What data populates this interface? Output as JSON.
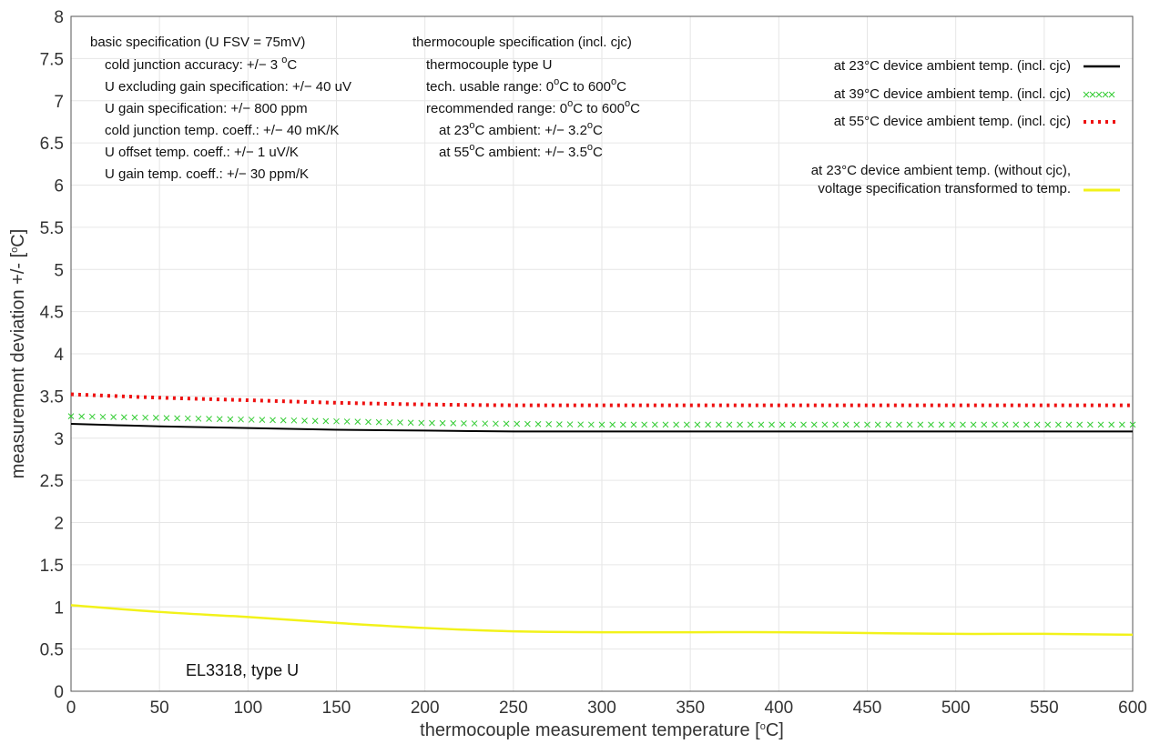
{
  "chart_data": {
    "type": "line",
    "xlabel": "thermocouple measurement temperature [°C]",
    "ylabel": "measurement deviation +/- [°C]",
    "xlim": [
      0,
      600
    ],
    "ylim": [
      0,
      8
    ],
    "x_ticks": [
      "0",
      "50",
      "100",
      "150",
      "200",
      "250",
      "300",
      "350",
      "400",
      "450",
      "500",
      "550",
      "600"
    ],
    "y_ticks": [
      "0",
      "0.5",
      "1",
      "1.5",
      "2",
      "2.5",
      "3",
      "3.5",
      "4",
      "4.5",
      "5",
      "5.5",
      "6",
      "6.5",
      "7",
      "7.5",
      "8"
    ],
    "grid": true,
    "legend_position": "top-right",
    "x": [
      0,
      50,
      100,
      150,
      200,
      250,
      300,
      350,
      400,
      450,
      500,
      550,
      600
    ],
    "series": [
      {
        "name": "at 23°C device ambient temp. (incl. cjc)",
        "color": "#000000",
        "style": "solid",
        "values": [
          3.17,
          3.14,
          3.12,
          3.1,
          3.09,
          3.08,
          3.08,
          3.08,
          3.08,
          3.08,
          3.08,
          3.08,
          3.08
        ]
      },
      {
        "name": "at 39°C device ambient temp. (incl. cjc)",
        "color": "#33cc33",
        "style": "cross",
        "values": [
          3.26,
          3.24,
          3.22,
          3.2,
          3.18,
          3.17,
          3.16,
          3.16,
          3.16,
          3.16,
          3.16,
          3.16,
          3.16
        ]
      },
      {
        "name": "at 55°C device ambient temp. (incl. cjc)",
        "color": "#ee1111",
        "style": "dotted",
        "values": [
          3.52,
          3.48,
          3.45,
          3.42,
          3.4,
          3.39,
          3.39,
          3.39,
          3.39,
          3.39,
          3.39,
          3.39,
          3.39
        ]
      },
      {
        "name": "at 23°C device ambient temp. (without cjc),\nvoltage specification transformed to temp.",
        "color": "#f2f21a",
        "style": "solid",
        "values": [
          1.02,
          0.94,
          0.88,
          0.81,
          0.75,
          0.71,
          0.7,
          0.7,
          0.7,
          0.69,
          0.68,
          0.68,
          0.67
        ]
      }
    ],
    "annotations": {
      "basic_title": "basic specification (U FSV = 75mV)",
      "basic_lines": [
        "cold junction accuracy: +/− 3 °C",
        "U excluding gain specification: +/− 40 uV",
        "U gain specification: +/− 800 ppm",
        "cold junction temp. coeff.: +/− 40 mK/K",
        "U offset temp. coeff.: +/− 1 uV/K",
        "U gain temp. coeff.: +/− 30 ppm/K"
      ],
      "tc_title": "thermocouple specification (incl. cjc)",
      "tc_lines": [
        "thermocouple type U",
        "tech. usable range: 0°C to 600°C",
        "recommended range: 0°C to 600°C"
      ],
      "tc_sub_lines": [
        "at 23°C ambient: +/− 3.2°C",
        "at 55°C ambient: +/− 3.5°C"
      ],
      "device_label": "EL3318, type U"
    }
  }
}
